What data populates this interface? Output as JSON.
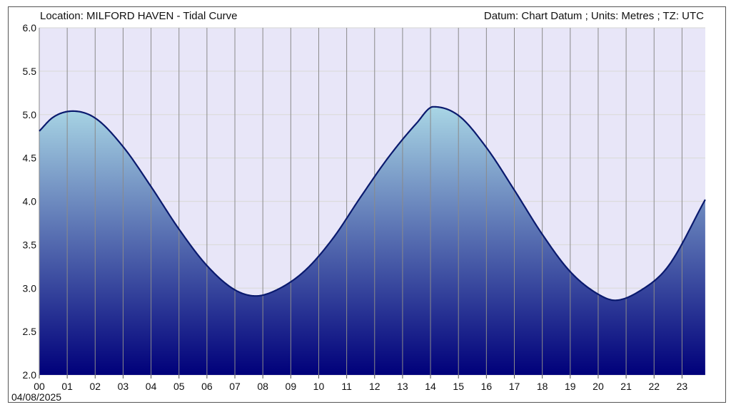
{
  "header": {
    "location_text": "Location: MILFORD HAVEN - Tidal Curve",
    "datum_text": "Datum: Chart Datum ; Units: Metres ; TZ: UTC"
  },
  "date_label": "04/08/2025",
  "colors": {
    "plot_background": "#e8e6f8",
    "fill_top": "#a9d6e5",
    "fill_bottom": "#00007a",
    "curve": "#0a1a6e",
    "grid_vertical": "#8a8a8a",
    "grid_horizontal": "#dcdcdc"
  },
  "chart_data": {
    "type": "area",
    "title": "MILFORD HAVEN - Tidal Curve",
    "xlabel": "",
    "ylabel": "",
    "x_unit": "hour (UTC)",
    "y_unit": "Metres",
    "xlim": [
      0,
      23.833
    ],
    "ylim": [
      2.0,
      6.0
    ],
    "y_ticks": [
      "2.0",
      "2.5",
      "3.0",
      "3.5",
      "4.0",
      "4.5",
      "5.0",
      "5.5",
      "6.0"
    ],
    "x_ticks": [
      "00",
      "01",
      "02",
      "03",
      "04",
      "05",
      "06",
      "07",
      "08",
      "09",
      "10",
      "11",
      "12",
      "13",
      "14",
      "15",
      "16",
      "17",
      "18",
      "19",
      "20",
      "21",
      "22",
      "23"
    ],
    "grid": true,
    "series": [
      {
        "x": [
          0,
          0.5,
          1.2,
          2,
          3,
          4,
          5,
          6,
          7,
          7.75,
          8.5,
          9.5,
          10.5,
          11.5,
          12.5,
          13.5,
          14.1,
          15,
          16,
          17,
          18,
          19,
          20,
          20.6,
          21.5,
          22.5,
          23.83
        ],
        "y": [
          4.81,
          4.97,
          5.04,
          4.96,
          4.63,
          4.17,
          3.68,
          3.26,
          2.98,
          2.91,
          2.98,
          3.2,
          3.57,
          4.05,
          4.51,
          4.9,
          5.09,
          4.99,
          4.62,
          4.13,
          3.62,
          3.19,
          2.93,
          2.86,
          2.97,
          3.25,
          4.02
        ]
      }
    ]
  }
}
